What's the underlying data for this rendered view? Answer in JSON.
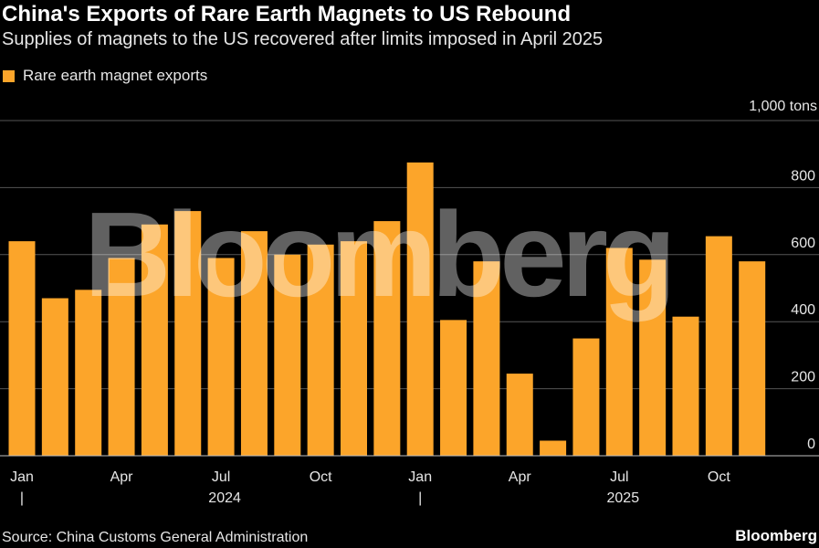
{
  "title": "China's Exports of Rare Earth Magnets to US Rebound",
  "subtitle": "Supplies of magnets to the US recovered after limits imposed in April 2025",
  "legend": {
    "label": "Rare earth magnet exports"
  },
  "unit_label": "1,000 tons",
  "source": "Source: China Customs General Administration",
  "brand": "Bloomberg",
  "watermark": "Bloomberg",
  "colors": {
    "bar": "#fca52a",
    "grid": "#555555",
    "background": "#000000"
  },
  "chart_data": {
    "type": "bar",
    "categories": [
      "2024-01",
      "2024-02",
      "2024-03",
      "2024-04",
      "2024-05",
      "2024-06",
      "2024-07",
      "2024-08",
      "2024-09",
      "2024-10",
      "2024-11",
      "2024-12",
      "2025-01",
      "2025-02",
      "2025-03",
      "2025-04",
      "2025-05",
      "2025-06",
      "2025-07",
      "2025-08",
      "2025-09",
      "2025-10",
      "2025-11"
    ],
    "series": [
      {
        "name": "Rare earth magnet exports",
        "values": [
          640,
          470,
          495,
          590,
          690,
          730,
          590,
          670,
          600,
          630,
          640,
          700,
          875,
          405,
          580,
          245,
          45,
          350,
          620,
          585,
          415,
          655,
          580
        ]
      }
    ],
    "xticks": [
      {
        "index": 0,
        "label": "Jan"
      },
      {
        "index": 3,
        "label": "Apr"
      },
      {
        "index": 6,
        "label": "Jul"
      },
      {
        "index": 9,
        "label": "Oct"
      },
      {
        "index": 12,
        "label": "Jan"
      },
      {
        "index": 15,
        "label": "Apr"
      },
      {
        "index": 18,
        "label": "Jul"
      },
      {
        "index": 21,
        "label": "Oct"
      }
    ],
    "year_labels": [
      {
        "center_index": 6,
        "label": "2024"
      },
      {
        "center_index": 18,
        "label": "2025"
      }
    ],
    "year_separators": [
      0,
      12
    ],
    "year_separator_glyph": "|",
    "yticks": [
      0,
      200,
      400,
      600,
      800
    ],
    "ylim": [
      0,
      1000
    ],
    "grid": true,
    "legend_position": "top-left"
  }
}
